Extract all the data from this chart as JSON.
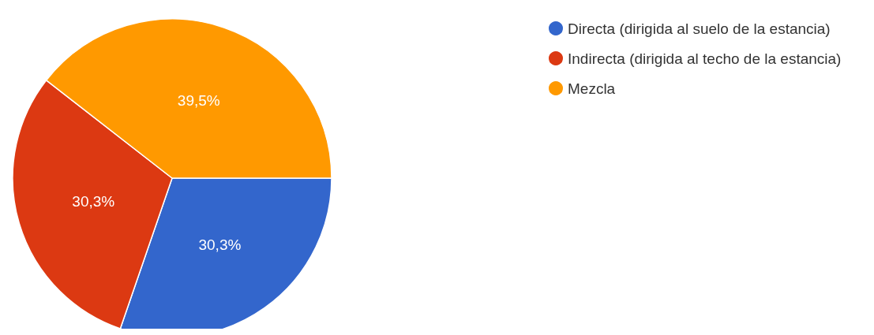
{
  "chart_data": {
    "type": "pie",
    "categories": [
      "Directa (dirigida al suelo de la estancia)",
      "Indirecta (dirigida al techo de la estancia)",
      "Mezcla"
    ],
    "values": [
      30.3,
      30.3,
      39.5
    ],
    "colors": [
      "#3366cc",
      "#dc3912",
      "#ff9900"
    ],
    "value_labels": [
      "30,3%",
      "30,3%",
      "39,5%"
    ],
    "legend": "top right"
  }
}
